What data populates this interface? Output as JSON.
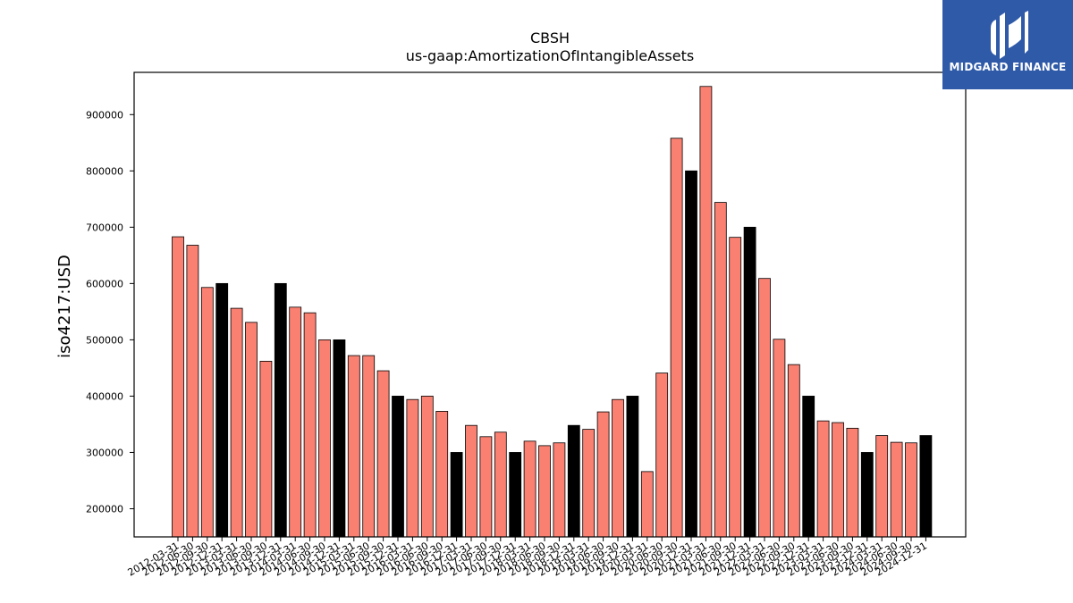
{
  "chart_data": {
    "type": "bar",
    "title": "CBSH",
    "subtitle": "us-gaap:AmortizationOfIntangibleAssets",
    "xlabel": "",
    "ylabel": "iso4217:USD",
    "ylim": [
      150000,
      975000
    ],
    "yticks": [
      200000,
      300000,
      400000,
      500000,
      600000,
      700000,
      800000,
      900000
    ],
    "grid": false,
    "colors": {
      "bar": "#fa8072",
      "highlight": "#000000",
      "edge": "#000000"
    },
    "categories": [
      "2012-03-31",
      "2012-06-30",
      "2012-09-30",
      "2012-12-31",
      "2013-03-31",
      "2013-06-30",
      "2013-09-30",
      "2013-12-31",
      "2014-03-31",
      "2014-06-30",
      "2014-09-30",
      "2014-12-31",
      "2015-03-31",
      "2015-06-30",
      "2015-09-30",
      "2015-12-31",
      "2016-03-31",
      "2016-06-30",
      "2016-09-30",
      "2016-12-31",
      "2017-03-31",
      "2017-06-30",
      "2017-09-30",
      "2017-12-31",
      "2018-03-31",
      "2018-06-30",
      "2018-09-30",
      "2018-12-31",
      "2019-03-31",
      "2019-06-30",
      "2019-09-30",
      "2019-12-31",
      "2020-03-31",
      "2020-06-30",
      "2020-09-30",
      "2020-12-31",
      "2021-03-31",
      "2021-06-30",
      "2021-09-30",
      "2021-12-31",
      "2022-03-31",
      "2022-06-30",
      "2022-09-30",
      "2022-12-31",
      "2023-03-31",
      "2023-06-30",
      "2023-09-30",
      "2023-12-31",
      "2024-03-31",
      "2024-06-30",
      "2024-09-30",
      "2024-12-31"
    ],
    "values": [
      683000,
      668000,
      593000,
      600000,
      556000,
      531000,
      462000,
      600000,
      558000,
      548000,
      500000,
      500000,
      472000,
      472000,
      445000,
      400000,
      394000,
      400000,
      373000,
      300000,
      348000,
      328000,
      336000,
      300000,
      320000,
      312000,
      317000,
      348000,
      341000,
      372000,
      394000,
      400000,
      266000,
      441000,
      858000,
      800000,
      950000,
      744000,
      682000,
      700000,
      609000,
      501000,
      456000,
      400000,
      356000,
      353000,
      343000,
      300000,
      330000,
      318000,
      317000,
      330000
    ],
    "highlighted": [
      false,
      false,
      false,
      true,
      false,
      false,
      false,
      true,
      false,
      false,
      false,
      true,
      false,
      false,
      false,
      true,
      false,
      false,
      false,
      true,
      false,
      false,
      false,
      true,
      false,
      false,
      false,
      true,
      false,
      false,
      false,
      true,
      false,
      false,
      false,
      true,
      false,
      false,
      false,
      true,
      false,
      false,
      false,
      true,
      false,
      false,
      false,
      true,
      false,
      false,
      false,
      true
    ]
  },
  "logo": {
    "text": "MIDGARD FINANCE",
    "icon": "midgard-logo-icon",
    "background": "#2f5aa8"
  }
}
